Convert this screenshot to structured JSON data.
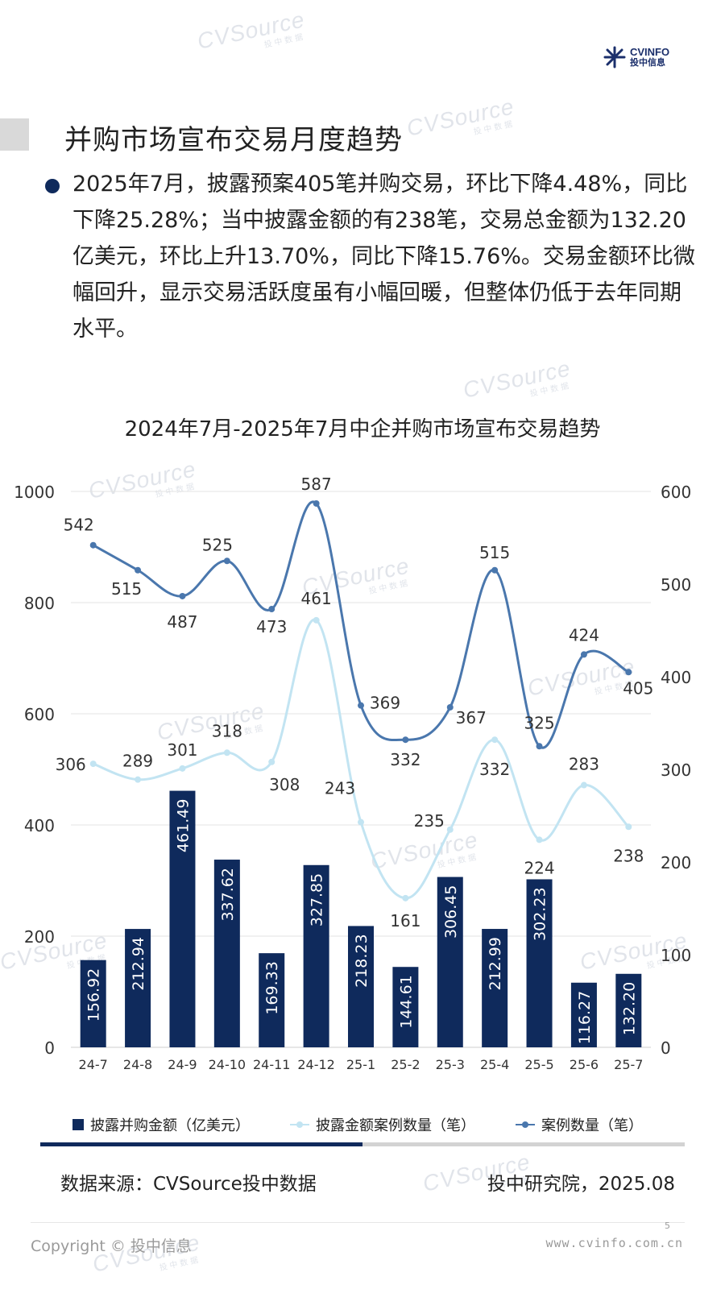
{
  "logo": {
    "brand": "CVINFO",
    "sub": "投中信息"
  },
  "watermark": {
    "text": "CVSource",
    "sub": "投中数据"
  },
  "page_title": "并购市场宣布交易月度趋势",
  "summary": "2025年7月，披露预案405笔并购交易，环比下降4.48%，同比下降25.28%；当中披露金额的有238笔，交易总金额为132.20亿美元，环比上升13.70%，同比下降15.76%。交易金额环比微幅回升，显示交易活跃度虽有小幅回暖，但整体仍低于去年同期水平。",
  "chart_data": {
    "type": "bar",
    "title": "2024年7月-2025年7月中企并购市场宣布交易趋势",
    "categories": [
      "24-7",
      "24-8",
      "24-9",
      "24-10",
      "24-11",
      "24-12",
      "25-1",
      "25-2",
      "25-3",
      "25-4",
      "25-5",
      "25-6",
      "25-7"
    ],
    "y_left": {
      "ylim": [
        0,
        1000
      ],
      "ticks": [
        0,
        200,
        400,
        600,
        800,
        1000
      ]
    },
    "y_right": {
      "ylim": [
        0,
        600
      ],
      "ticks": [
        0,
        100,
        200,
        300,
        400,
        500,
        600
      ]
    },
    "grid": true,
    "legend_position": "bottom",
    "series": [
      {
        "name": "披露并购金额（亿美元）",
        "type": "bar",
        "axis": "left",
        "color": "#0f2a5c",
        "values": [
          156.92,
          212.94,
          461.49,
          337.62,
          169.33,
          327.85,
          218.23,
          144.61,
          306.45,
          212.99,
          302.23,
          116.27,
          132.2
        ],
        "labels": [
          "156.92",
          "212.94",
          "461.49",
          "337.62",
          "169.33",
          "327.85",
          "218.23",
          "144.61",
          "306.45",
          "212.99",
          "302.23",
          "116.27",
          "132.20"
        ]
      },
      {
        "name": "披露金额案例数量（笔）",
        "type": "line",
        "axis": "right",
        "color": "#c2e4f2",
        "values": [
          306,
          289,
          301,
          318,
          308,
          461,
          243,
          161,
          235,
          332,
          224,
          283,
          238
        ]
      },
      {
        "name": "案例数量（笔）",
        "type": "line",
        "axis": "right",
        "color": "#4a77ad",
        "values": [
          542,
          515,
          487,
          525,
          473,
          587,
          369,
          332,
          367,
          515,
          325,
          424,
          405
        ]
      }
    ]
  },
  "footer": {
    "source": "数据来源：CVSource投中数据",
    "credit": "投中研究院，2025.08",
    "copyright": "Copyright © 投中信息",
    "website": "www.cvinfo.com.cn",
    "page_number": "5"
  }
}
